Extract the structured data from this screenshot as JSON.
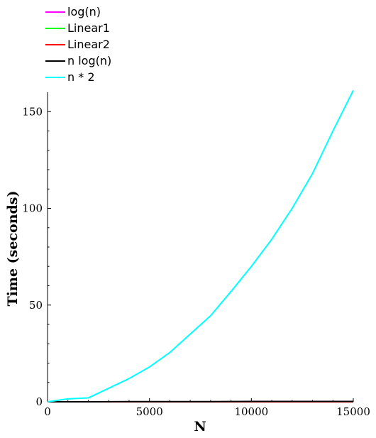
{
  "chart_data": {
    "type": "line",
    "title": "",
    "xlabel": "N",
    "ylabel": "Time (seconds)",
    "xlim": [
      0,
      15000
    ],
    "ylim": [
      0,
      160
    ],
    "x_ticks": [
      0,
      5000,
      10000,
      15000
    ],
    "y_ticks": [
      0,
      50,
      100,
      150
    ],
    "grid": false,
    "legend_position": "top-left",
    "series": [
      {
        "name": "log(n)",
        "color": "#ff00ff",
        "x": [
          0,
          1000,
          2000,
          4000,
          6000,
          8000,
          10000,
          12000,
          14000,
          15000
        ],
        "y": [
          0,
          0,
          0,
          0,
          0,
          0,
          0,
          0,
          0,
          0
        ]
      },
      {
        "name": "Linear1",
        "color": "#00ff00",
        "x": [
          0,
          1000,
          2000,
          4000,
          6000,
          8000,
          10000,
          12000,
          14000,
          15000
        ],
        "y": [
          0,
          0,
          0,
          0,
          0,
          0,
          0,
          0,
          0,
          0
        ]
      },
      {
        "name": "Linear2",
        "color": "#ff0000",
        "x": [
          0,
          1000,
          2000,
          4000,
          6000,
          8000,
          10000,
          12000,
          14000,
          15000
        ],
        "y": [
          0,
          0,
          0,
          0,
          0,
          0,
          0,
          0,
          0,
          0
        ]
      },
      {
        "name": "n log(n)",
        "color": "#000000",
        "x": [
          0,
          1000,
          2000,
          4000,
          6000,
          8000,
          10000,
          12000,
          14000,
          15000
        ],
        "y": [
          0,
          0,
          0,
          0.1,
          0.1,
          0.1,
          0.2,
          0.2,
          0.2,
          0.2
        ]
      },
      {
        "name": "n * 2",
        "color": "#00ffff",
        "x": [
          0,
          1000,
          2000,
          3000,
          4000,
          5000,
          6000,
          7000,
          8000,
          9000,
          10000,
          11000,
          12000,
          13000,
          14000,
          15000
        ],
        "y": [
          0,
          1.5,
          2,
          7,
          12,
          18,
          25.5,
          35,
          44.5,
          57,
          70,
          84,
          100,
          118,
          140,
          161
        ]
      }
    ]
  }
}
